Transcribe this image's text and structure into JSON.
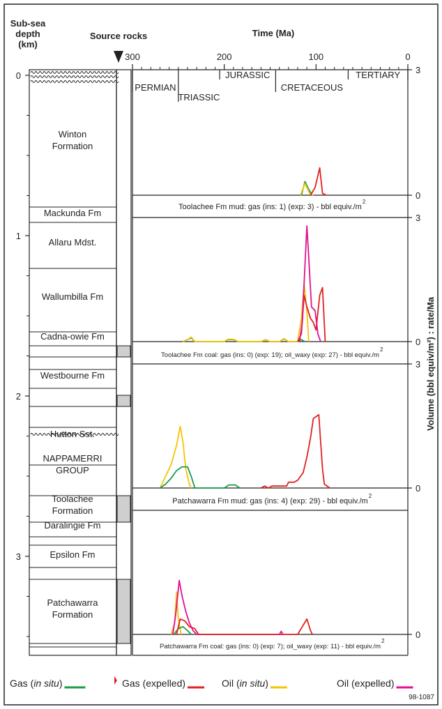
{
  "header": {
    "depth_title_lines": [
      "Sub-sea",
      "depth",
      "(km)"
    ],
    "source_rocks": "Source rocks",
    "time_title": "Time (Ma)",
    "y_right_title": "Volume (bbl equiv/m²) : rate/Ma",
    "figure_id": "98-1087"
  },
  "time_axis": {
    "ticks": [
      "300",
      "200",
      "100",
      "0"
    ],
    "periods": [
      {
        "name": "PERMIAN"
      },
      {
        "name": "TRIASSIC"
      },
      {
        "name": "JURASSIC"
      },
      {
        "name": "CRETACEOUS"
      },
      {
        "name": "TERTIARY"
      }
    ]
  },
  "depth_axis": {
    "ticks": [
      "0",
      "1",
      "2",
      "3"
    ]
  },
  "stratigraphy": [
    {
      "name": "Winton\nFormation"
    },
    {
      "name": "Mackunda Fm"
    },
    {
      "name": "Allaru Mdst."
    },
    {
      "name": "Wallumbilla Fm"
    },
    {
      "name": "Cadna-owie Fm"
    },
    {
      "name": "Westbourne Fm"
    },
    {
      "name": "Hutton Sst."
    },
    {
      "name": "NAPPAMERRI\nGROUP"
    },
    {
      "name": "Toolachee\nFormation"
    },
    {
      "name": "Daralingie Fm"
    },
    {
      "name": "Epsilon Fm"
    },
    {
      "name": "Patchawarra\nFormation"
    }
  ],
  "legend": [
    {
      "label_pre": "Gas (",
      "label_it": "in situ",
      "label_post": ")",
      "color": "#1a9a4a"
    },
    {
      "label_pre": "Gas (expelled)",
      "label_it": "",
      "label_post": "",
      "color": "#e02020"
    },
    {
      "label_pre": "Oil (",
      "label_it": "in situ",
      "label_post": ")",
      "color": "#f5c400"
    },
    {
      "label_pre": "Oil (expelled)",
      "label_it": "",
      "label_post": "",
      "color": "#e0108f"
    }
  ],
  "chart_data": [
    {
      "type": "line",
      "panel_label": "Toolachee Fm mud: gas (ins:  1) (exp:  3) - bbl equiv./m",
      "xlabel": "Time (Ma)",
      "ylabel": "Volume (bbl equiv/m²) : rate/Ma",
      "xlim": [
        300,
        0
      ],
      "ylim": [
        0,
        3
      ],
      "y_ticks": [
        "3",
        "0"
      ],
      "series": [
        {
          "name": "Gas (in situ)",
          "color": "#1a9a4a",
          "points": [
            [
              116,
              0
            ],
            [
              112,
              0.35
            ],
            [
              108,
              0.15
            ],
            [
              104,
              0
            ]
          ]
        },
        {
          "name": "Oil (in situ)",
          "color": "#f5c400",
          "points": [
            [
              117,
              0
            ],
            [
              112,
              0.3
            ],
            [
              107,
              0.05
            ],
            [
              103,
              0
            ]
          ]
        },
        {
          "name": "Gas (expelled)",
          "color": "#e02020",
          "points": [
            [
              106,
              0
            ],
            [
              101,
              0.2
            ],
            [
              96,
              0.7
            ],
            [
              93,
              0.05
            ],
            [
              89,
              0
            ]
          ]
        }
      ]
    },
    {
      "type": "line",
      "panel_label": "Toolachee Fm coal: gas (ins:  0) (exp:  19); oil_waxy (exp:  27) - bbl equiv./m",
      "xlabel": "Time (Ma)",
      "ylabel": "Volume (bbl equiv/m²) : rate/Ma",
      "xlim": [
        300,
        0
      ],
      "ylim": [
        0,
        3
      ],
      "y_ticks": [
        "3",
        "0"
      ],
      "series": [
        {
          "name": "Gas (in situ)",
          "color": "#1a9a4a",
          "points": [
            [
              245,
              0
            ],
            [
              240,
              0.05
            ],
            [
              236,
              0.1
            ],
            [
              232,
              0
            ],
            [
              200,
              0
            ],
            [
              196,
              0.05
            ],
            [
              190,
              0.05
            ],
            [
              185,
              0
            ],
            [
              160,
              0
            ],
            [
              155,
              0.05
            ],
            [
              150,
              0
            ],
            [
              140,
              0
            ],
            [
              135,
              0.07
            ],
            [
              130,
              0
            ],
            [
              120,
              0
            ],
            [
              116,
              0.05
            ],
            [
              112,
              0
            ]
          ]
        },
        {
          "name": "Oil (in situ)",
          "color": "#f5c400",
          "points": [
            [
              245,
              0
            ],
            [
              240,
              0.05
            ],
            [
              236,
              0.12
            ],
            [
              232,
              0
            ],
            [
              200,
              0
            ],
            [
              196,
              0.06
            ],
            [
              190,
              0.06
            ],
            [
              185,
              0
            ],
            [
              160,
              0
            ],
            [
              155,
              0.05
            ],
            [
              150,
              0
            ],
            [
              140,
              0
            ],
            [
              135,
              0.08
            ],
            [
              130,
              0
            ],
            [
              120,
              0
            ],
            [
              116,
              0.6
            ],
            [
              113,
              1.5
            ],
            [
              110,
              0.8
            ],
            [
              108,
              0
            ]
          ]
        },
        {
          "name": "Gas (expelled)",
          "color": "#e02020",
          "points": [
            [
              120,
              0
            ],
            [
              116,
              0.2
            ],
            [
              113,
              1.2
            ],
            [
              110,
              0.9
            ],
            [
              106,
              0.6
            ],
            [
              103,
              0.5
            ],
            [
              100,
              0.3
            ],
            [
              96,
              1.2
            ],
            [
              93,
              1.4
            ],
            [
              90,
              0
            ]
          ]
        },
        {
          "name": "Oil (expelled)",
          "color": "#e0108f",
          "points": [
            [
              118,
              0
            ],
            [
              115,
              0.5
            ],
            [
              112,
              2.0
            ],
            [
              110,
              3.0
            ],
            [
              108,
              2.2
            ],
            [
              105,
              0.9
            ],
            [
              101,
              0.8
            ],
            [
              98,
              0.2
            ],
            [
              95,
              0
            ]
          ]
        }
      ]
    },
    {
      "type": "line",
      "panel_label": "Patchawarra Fm mud: gas (ins:  4) (exp:  29) - bbl equiv./m",
      "xlabel": "Time (Ma)",
      "ylabel": "Volume (bbl equiv/m²) : rate/Ma",
      "xlim": [
        300,
        0
      ],
      "ylim": [
        0,
        3
      ],
      "y_ticks": [
        "3",
        "0"
      ],
      "series": [
        {
          "name": "Oil (in situ)",
          "color": "#f5c400",
          "points": [
            [
              270,
              0
            ],
            [
              264,
              0.3
            ],
            [
              258,
              0.6
            ],
            [
              252,
              1.1
            ],
            [
              248,
              1.6
            ],
            [
              245,
              1.2
            ],
            [
              242,
              0.5
            ],
            [
              238,
              0.1
            ],
            [
              236,
              0
            ]
          ]
        },
        {
          "name": "Gas (in situ)",
          "color": "#1a9a4a",
          "points": [
            [
              270,
              0
            ],
            [
              264,
              0.1
            ],
            [
              258,
              0.25
            ],
            [
              252,
              0.45
            ],
            [
              246,
              0.55
            ],
            [
              240,
              0.55
            ],
            [
              236,
              0.3
            ],
            [
              232,
              0
            ],
            [
              200,
              0
            ],
            [
              195,
              0.08
            ],
            [
              188,
              0.08
            ],
            [
              183,
              0
            ]
          ]
        },
        {
          "name": "Gas (expelled)",
          "color": "#e02020",
          "points": [
            [
              160,
              0
            ],
            [
              156,
              0.05
            ],
            [
              152,
              0
            ],
            [
              148,
              0.05
            ],
            [
              140,
              0.05
            ],
            [
              132,
              0.05
            ],
            [
              130,
              0.15
            ],
            [
              124,
              0.15
            ],
            [
              120,
              0.2
            ],
            [
              114,
              0.4
            ],
            [
              110,
              0.8
            ],
            [
              106,
              1.3
            ],
            [
              103,
              1.8
            ],
            [
              97,
              1.9
            ],
            [
              95,
              1.2
            ],
            [
              93,
              0.5
            ],
            [
              91,
              0.1
            ],
            [
              88,
              0.05
            ],
            [
              85,
              0
            ]
          ]
        }
      ]
    },
    {
      "type": "line",
      "panel_label": "Patchawarra Fm coal: gas (ins:  0) (exp:  7); oil_waxy (exp:  11) - bbl equiv./m",
      "xlabel": "Time (Ma)",
      "ylabel": "Volume (bbl equiv/m²) : rate/Ma",
      "xlim": [
        300,
        0
      ],
      "ylim": [
        0,
        3
      ],
      "y_ticks": [
        "0"
      ],
      "series": [
        {
          "name": "Oil (in situ)",
          "color": "#f5c400",
          "points": [
            [
              258,
              0
            ],
            [
              254,
              0.3
            ],
            [
              252,
              1.1
            ],
            [
              250,
              0.4
            ],
            [
              247,
              0
            ]
          ]
        },
        {
          "name": "Gas (in situ)",
          "color": "#1a9a4a",
          "points": [
            [
              255,
              0
            ],
            [
              250,
              0.15
            ],
            [
              245,
              0.2
            ],
            [
              240,
              0.1
            ],
            [
              236,
              0
            ]
          ]
        },
        {
          "name": "Oil (expelled)",
          "color": "#e0108f",
          "points": [
            [
              256,
              0
            ],
            [
              253,
              0.5
            ],
            [
              249,
              1.4
            ],
            [
              246,
              1.0
            ],
            [
              242,
              0.6
            ],
            [
              238,
              0.3
            ],
            [
              234,
              0.1
            ],
            [
              230,
              0
            ],
            [
              140,
              0
            ],
            [
              138,
              0.08
            ],
            [
              136,
              0
            ]
          ]
        },
        {
          "name": "Gas (expelled)",
          "color": "#e02020",
          "points": [
            [
              252,
              0
            ],
            [
              248,
              0.4
            ],
            [
              243,
              0.35
            ],
            [
              238,
              0.2
            ],
            [
              232,
              0.15
            ],
            [
              228,
              0
            ],
            [
              120,
              0
            ],
            [
              115,
              0.2
            ],
            [
              110,
              0.4
            ],
            [
              106,
              0.1
            ],
            [
              104,
              0
            ]
          ]
        }
      ]
    }
  ]
}
